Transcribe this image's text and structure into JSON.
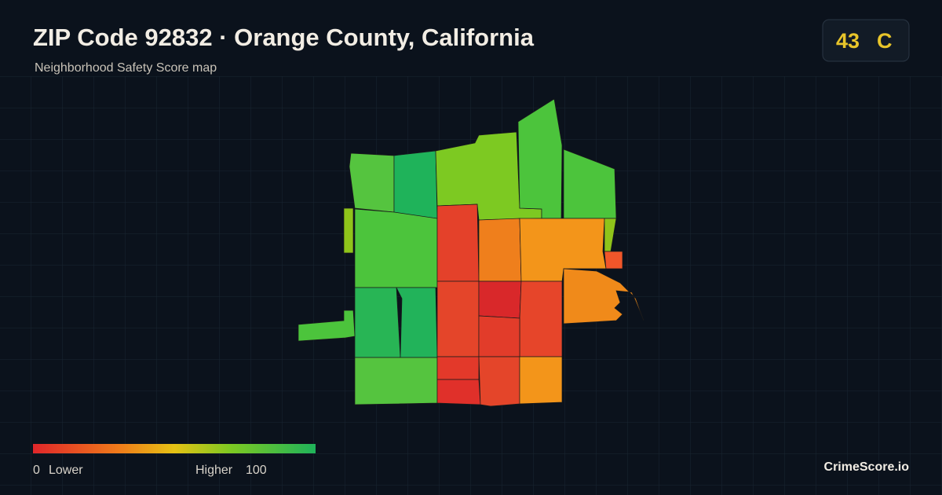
{
  "header": {
    "title": "ZIP Code 92832 · Orange County, California",
    "subtitle": "Neighborhood Safety Score map"
  },
  "badge": {
    "score": 43,
    "grade": "C"
  },
  "legend": {
    "min": 0,
    "min_label": "Lower",
    "max_label": "Higher",
    "max": 100
  },
  "footer": {
    "brand": "CrimeScore.io"
  }
}
